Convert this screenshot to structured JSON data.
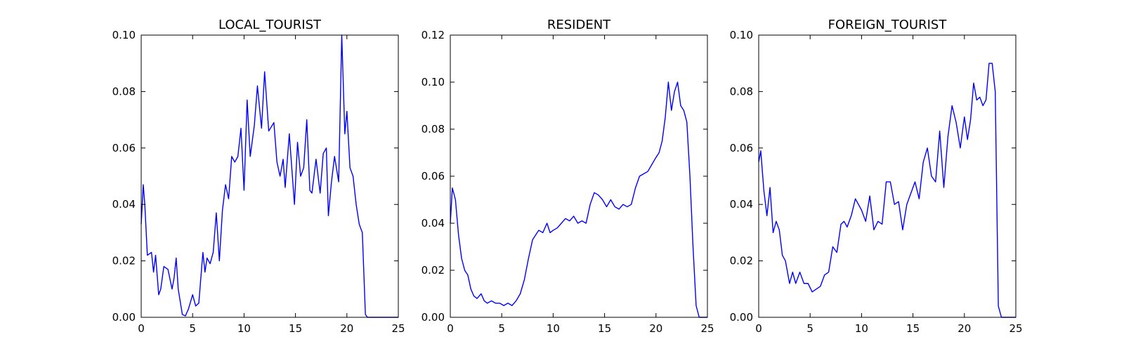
{
  "colors": {
    "line": "#0000ff",
    "axis": "#000000",
    "background": "#ffffff"
  },
  "chart_data": [
    {
      "type": "line",
      "title": "LOCAL_TOURIST",
      "xlim": [
        0,
        25
      ],
      "ylim": [
        0,
        0.1
      ],
      "x_ticks": [
        0,
        5,
        10,
        15,
        20,
        25
      ],
      "x_tick_labels": [
        "0",
        "5",
        "10",
        "15",
        "20",
        "25"
      ],
      "y_ticks": [
        0,
        0.02,
        0.04,
        0.06,
        0.08,
        0.1
      ],
      "y_tick_labels": [
        "0.00",
        "0.02",
        "0.04",
        "0.06",
        "0.08",
        "0.10"
      ],
      "grid": false,
      "series": [
        {
          "x": [
            0,
            0.2,
            0.35,
            0.6,
            1.0,
            1.2,
            1.4,
            1.7,
            1.9,
            2.2,
            2.6,
            3.0,
            3.2,
            3.4,
            3.6,
            4.0,
            4.3,
            4.6,
            5.0,
            5.3,
            5.6,
            6.0,
            6.2,
            6.4,
            6.7,
            7.0,
            7.3,
            7.6,
            7.9,
            8.2,
            8.5,
            8.8,
            9.1,
            9.4,
            9.7,
            10.0,
            10.3,
            10.6,
            11.0,
            11.3,
            11.7,
            12.0,
            12.4,
            12.9,
            13.2,
            13.5,
            13.8,
            14.0,
            14.4,
            14.9,
            15.2,
            15.5,
            15.8,
            16.1,
            16.4,
            16.6,
            17.0,
            17.4,
            17.7,
            18.0,
            18.2,
            18.5,
            18.8,
            19.2,
            19.5,
            19.8,
            20.0,
            20.3,
            20.6,
            20.9,
            21.2,
            21.5,
            21.8,
            22.0,
            22.2,
            22.5,
            22.8,
            23.0,
            23.3,
            23.6,
            24.0,
            24.4,
            24.6,
            24.8,
            25.0
          ],
          "y": [
            0.033,
            0.047,
            0.04,
            0.022,
            0.023,
            0.016,
            0.022,
            0.008,
            0.01,
            0.018,
            0.017,
            0.01,
            0.014,
            0.021,
            0.01,
            0.001,
            0.0005,
            0.003,
            0.008,
            0.004,
            0.005,
            0.023,
            0.016,
            0.021,
            0.019,
            0.023,
            0.037,
            0.02,
            0.038,
            0.047,
            0.042,
            0.057,
            0.055,
            0.057,
            0.067,
            0.045,
            0.077,
            0.057,
            0.068,
            0.082,
            0.067,
            0.087,
            0.066,
            0.069,
            0.055,
            0.05,
            0.056,
            0.046,
            0.065,
            0.04,
            0.062,
            0.05,
            0.053,
            0.07,
            0.045,
            0.044,
            0.056,
            0.044,
            0.058,
            0.06,
            0.036,
            0.048,
            0.057,
            0.048,
            0.1,
            0.065,
            0.073,
            0.053,
            0.05,
            0.04,
            0.033,
            0.03,
            0.001,
            0.0,
            0.0,
            0.0,
            0.0,
            0.0,
            0.0,
            0.0,
            0.0,
            0.0,
            0.0,
            0.0,
            0.0
          ]
        }
      ]
    },
    {
      "type": "line",
      "title": "RESIDENT",
      "xlim": [
        0,
        25
      ],
      "ylim": [
        0,
        0.12
      ],
      "x_ticks": [
        0,
        5,
        10,
        15,
        20,
        25
      ],
      "x_tick_labels": [
        "0",
        "5",
        "10",
        "15",
        "20",
        "25"
      ],
      "y_ticks": [
        0,
        0.02,
        0.04,
        0.06,
        0.08,
        0.1,
        0.12
      ],
      "y_tick_labels": [
        "0.00",
        "0.02",
        "0.04",
        "0.06",
        "0.08",
        "0.10",
        "0.12"
      ],
      "grid": false,
      "series": [
        {
          "x": [
            0,
            0.2,
            0.5,
            0.8,
            1.1,
            1.4,
            1.7,
            2.0,
            2.3,
            2.6,
            3.0,
            3.3,
            3.6,
            4.0,
            4.4,
            4.8,
            5.2,
            5.6,
            6.0,
            6.4,
            6.8,
            7.2,
            7.6,
            8.0,
            8.3,
            8.6,
            9.0,
            9.4,
            9.7,
            10.0,
            10.4,
            10.8,
            11.2,
            11.6,
            12.0,
            12.4,
            12.8,
            13.2,
            13.6,
            14.0,
            14.4,
            14.8,
            15.2,
            15.6,
            16.0,
            16.4,
            16.8,
            17.2,
            17.6,
            18.0,
            18.4,
            18.8,
            19.2,
            19.6,
            20.0,
            20.3,
            20.6,
            20.9,
            21.2,
            21.5,
            21.8,
            22.1,
            22.4,
            22.7,
            23.0,
            23.3,
            23.6,
            23.9,
            24.2,
            24.5,
            24.8,
            25.0
          ],
          "y": [
            0.04,
            0.055,
            0.05,
            0.035,
            0.025,
            0.02,
            0.018,
            0.012,
            0.009,
            0.008,
            0.01,
            0.007,
            0.006,
            0.007,
            0.006,
            0.006,
            0.005,
            0.006,
            0.005,
            0.007,
            0.01,
            0.016,
            0.025,
            0.033,
            0.035,
            0.037,
            0.036,
            0.04,
            0.036,
            0.037,
            0.038,
            0.04,
            0.042,
            0.041,
            0.043,
            0.04,
            0.041,
            0.04,
            0.048,
            0.053,
            0.052,
            0.05,
            0.047,
            0.05,
            0.047,
            0.046,
            0.048,
            0.047,
            0.048,
            0.055,
            0.06,
            0.061,
            0.062,
            0.065,
            0.068,
            0.07,
            0.075,
            0.085,
            0.1,
            0.088,
            0.096,
            0.1,
            0.09,
            0.088,
            0.083,
            0.06,
            0.03,
            0.005,
            0.0,
            0.0,
            0.0,
            0.0
          ]
        }
      ]
    },
    {
      "type": "line",
      "title": "FOREIGN_TOURIST",
      "xlim": [
        0,
        25
      ],
      "ylim": [
        0,
        0.1
      ],
      "x_ticks": [
        0,
        5,
        10,
        15,
        20,
        25
      ],
      "x_tick_labels": [
        "0",
        "5",
        "10",
        "15",
        "20",
        "25"
      ],
      "y_ticks": [
        0,
        0.02,
        0.04,
        0.06,
        0.08,
        0.1
      ],
      "y_tick_labels": [
        "0.00",
        "0.02",
        "0.04",
        "0.06",
        "0.08",
        "0.10"
      ],
      "grid": false,
      "series": [
        {
          "x": [
            0,
            0.2,
            0.5,
            0.8,
            1.1,
            1.4,
            1.7,
            2.0,
            2.3,
            2.6,
            3.0,
            3.3,
            3.6,
            4.0,
            4.4,
            4.8,
            5.2,
            5.6,
            6.0,
            6.4,
            6.8,
            7.2,
            7.6,
            8.0,
            8.3,
            8.6,
            9.0,
            9.4,
            9.7,
            10.0,
            10.4,
            10.8,
            11.2,
            11.6,
            12.0,
            12.4,
            12.8,
            13.2,
            13.6,
            14.0,
            14.4,
            14.8,
            15.2,
            15.6,
            16.0,
            16.4,
            16.8,
            17.2,
            17.6,
            18.0,
            18.4,
            18.8,
            19.2,
            19.6,
            20.0,
            20.3,
            20.6,
            20.9,
            21.2,
            21.5,
            21.8,
            22.1,
            22.4,
            22.7,
            23.0,
            23.3,
            23.6,
            23.9,
            24.2,
            24.5,
            24.8,
            25.0
          ],
          "y": [
            0.055,
            0.059,
            0.045,
            0.036,
            0.046,
            0.03,
            0.034,
            0.031,
            0.022,
            0.02,
            0.012,
            0.016,
            0.012,
            0.016,
            0.012,
            0.012,
            0.009,
            0.01,
            0.011,
            0.015,
            0.016,
            0.025,
            0.023,
            0.033,
            0.034,
            0.032,
            0.036,
            0.042,
            0.04,
            0.038,
            0.034,
            0.043,
            0.031,
            0.034,
            0.033,
            0.048,
            0.048,
            0.04,
            0.041,
            0.031,
            0.04,
            0.044,
            0.048,
            0.042,
            0.055,
            0.06,
            0.05,
            0.048,
            0.066,
            0.046,
            0.064,
            0.075,
            0.069,
            0.06,
            0.071,
            0.063,
            0.07,
            0.083,
            0.077,
            0.078,
            0.075,
            0.077,
            0.09,
            0.09,
            0.08,
            0.004,
            0.0,
            0.0,
            0.0,
            0.0,
            0.0,
            0.0
          ]
        }
      ]
    }
  ]
}
